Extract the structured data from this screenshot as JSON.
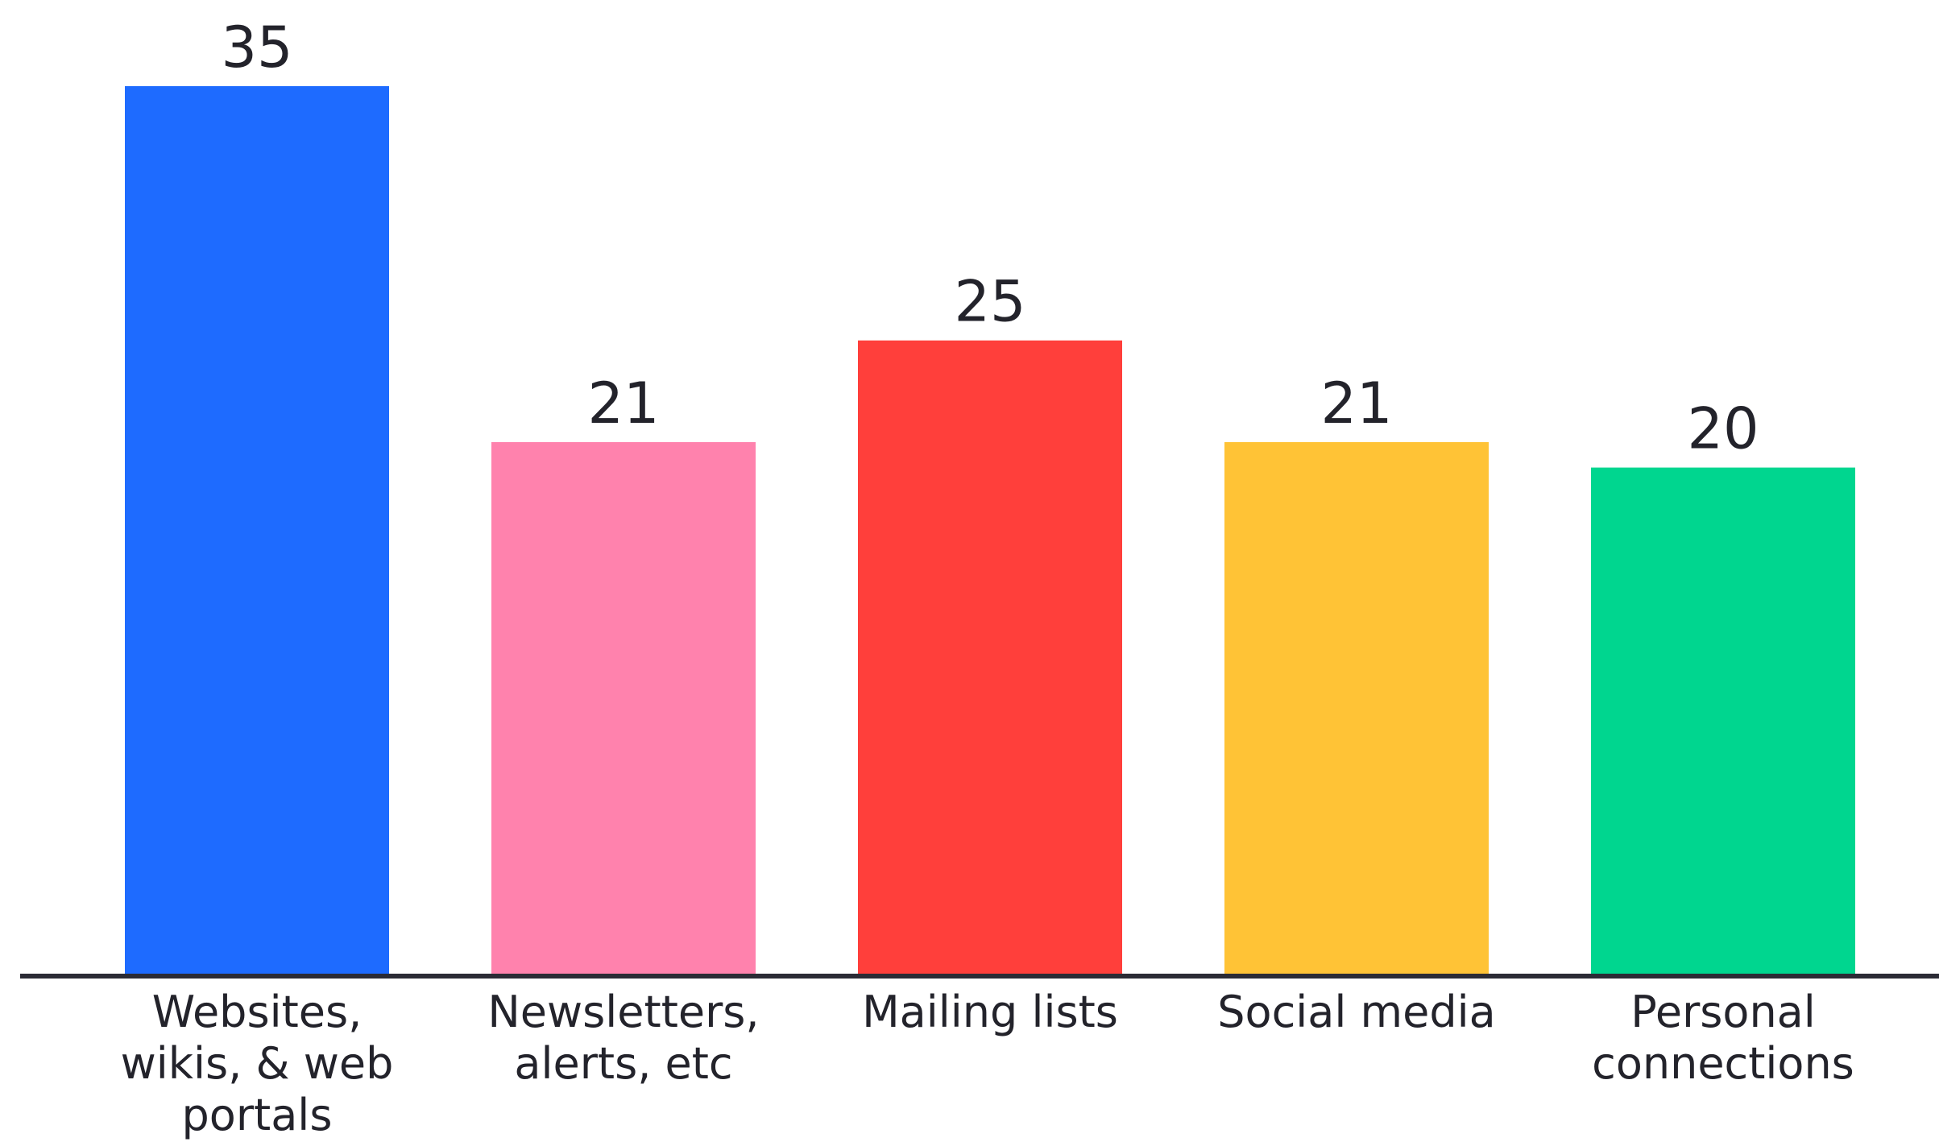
{
  "chart_data": {
    "type": "bar",
    "categories": [
      [
        "Websites,",
        "wikis, & web",
        "portals"
      ],
      [
        "Newsletters,",
        "alerts, etc"
      ],
      [
        "Mailing lists"
      ],
      [
        "Social media"
      ],
      [
        "Personal",
        "connections"
      ]
    ],
    "values": [
      35,
      21,
      25,
      21,
      20
    ],
    "value_labels": [
      "35",
      "21",
      "25",
      "21",
      "20"
    ],
    "colors": [
      "#1e6bff",
      "#ff82ad",
      "#ff3f3b",
      "#ffc336",
      "#00d68f"
    ],
    "axis_color": "#2b2b35",
    "ylim": [
      0,
      35
    ],
    "title": "",
    "xlabel": "",
    "ylabel": "",
    "grid": false,
    "legend": "none"
  }
}
